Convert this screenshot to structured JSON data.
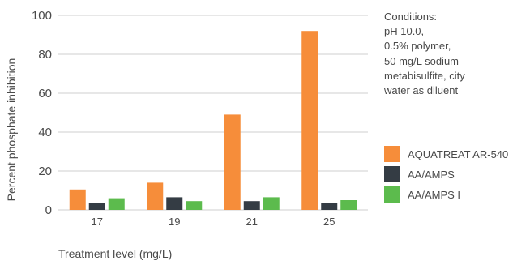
{
  "chart_data": {
    "type": "bar",
    "categories": [
      "17",
      "19",
      "21",
      "25"
    ],
    "series": [
      {
        "name": "AQUATREAT AR-540",
        "color": "#f68d3a",
        "values": [
          10.5,
          14,
          49,
          92
        ]
      },
      {
        "name": "AA/AMPS",
        "color": "#343c44",
        "values": [
          3.5,
          6.5,
          4.5,
          3.5
        ]
      },
      {
        "name": "AA/AMPS I",
        "color": "#5cbb4d",
        "values": [
          6,
          4.5,
          6.5,
          5
        ]
      }
    ],
    "title": "",
    "xlabel": "Treatment level (mg/L)",
    "ylabel": "Percent phosphate inhibition",
    "ylim": [
      0,
      100
    ],
    "yticks": [
      "0",
      "20",
      "40",
      "60",
      "80",
      "100"
    ],
    "grid": "horizontal",
    "legend_position": "right",
    "annotation": {
      "lines": [
        "Conditions:",
        "pH 10.0,",
        "0.5% polymer,",
        "50 mg/L sodium",
        "metabisulfite, city",
        "water as diluent"
      ]
    }
  }
}
